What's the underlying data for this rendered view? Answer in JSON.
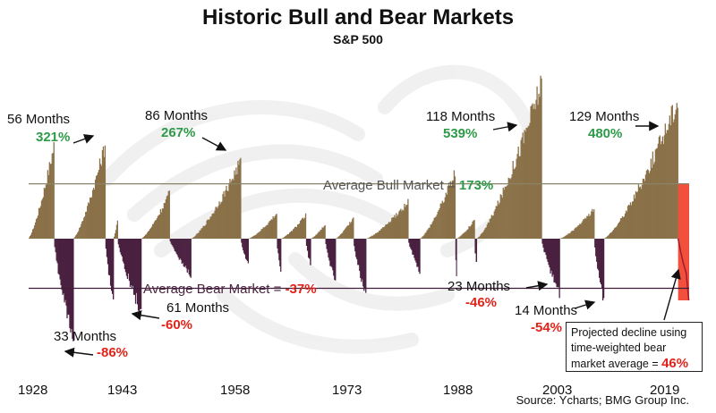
{
  "chart_data": {
    "type": "bar",
    "title": "Historic Bull and Bear Markets",
    "subtitle": "S&P 500",
    "x_tick_labels": [
      "1928",
      "1943",
      "1958",
      "1973",
      "1988",
      "2003",
      "2019"
    ],
    "average_bull": {
      "label": "Average Bull Market = ",
      "value": "173%"
    },
    "average_bear": {
      "label": "Average Bear Market = ",
      "value": "-37%"
    },
    "bull_markets": [
      {
        "start": 1926.0,
        "end": 1929.7,
        "peak": 321,
        "months": "56 Months",
        "pct": "321%"
      },
      {
        "start": 1932.5,
        "end": 1937.1,
        "peak": 325
      },
      {
        "start": 1938.3,
        "end": 1938.9,
        "peak": 62
      },
      {
        "start": 1942.3,
        "end": 1946.4,
        "peak": 158
      },
      {
        "start": 1949.5,
        "end": 1956.7,
        "peak": 267,
        "months": "86 Months",
        "pct": "267%"
      },
      {
        "start": 1957.8,
        "end": 1961.9,
        "peak": 86
      },
      {
        "start": 1962.5,
        "end": 1966.1,
        "peak": 80
      },
      {
        "start": 1966.8,
        "end": 1968.9,
        "peak": 48
      },
      {
        "start": 1970.4,
        "end": 1973.0,
        "peak": 74
      },
      {
        "start": 1974.8,
        "end": 1980.9,
        "peak": 126
      },
      {
        "start": 1982.6,
        "end": 1987.7,
        "peak": 229
      },
      {
        "start": 1987.9,
        "end": 1990.5,
        "peak": 65
      },
      {
        "start": 1990.8,
        "end": 2000.2,
        "peak": 539,
        "months": "118 Months",
        "pct": "539%"
      },
      {
        "start": 2002.8,
        "end": 2007.8,
        "peak": 102
      },
      {
        "start": 2009.2,
        "end": 2019.9,
        "peak": 480,
        "months": "129 Months",
        "pct": "480%"
      }
    ],
    "bear_markets": [
      {
        "start": 1929.7,
        "end": 1932.5,
        "trough": -86,
        "months": "33 Months",
        "pct": "-86%"
      },
      {
        "start": 1937.1,
        "end": 1938.3,
        "trough": -54
      },
      {
        "start": 1938.9,
        "end": 1942.3,
        "trough": -60,
        "months": "61 Months",
        "pct": "-60%"
      },
      {
        "start": 1946.4,
        "end": 1949.5,
        "trough": -30
      },
      {
        "start": 1956.7,
        "end": 1957.8,
        "trough": -22
      },
      {
        "start": 1961.9,
        "end": 1962.5,
        "trough": -28
      },
      {
        "start": 1966.1,
        "end": 1966.8,
        "trough": -22
      },
      {
        "start": 1968.9,
        "end": 1970.4,
        "trough": -36
      },
      {
        "start": 1973.0,
        "end": 1974.8,
        "trough": -48
      },
      {
        "start": 1980.9,
        "end": 1982.6,
        "trough": -27
      },
      {
        "start": 1987.7,
        "end": 1987.9,
        "trough": -34
      },
      {
        "start": 1990.5,
        "end": 1990.8,
        "trough": -20
      },
      {
        "start": 2000.2,
        "end": 2002.8,
        "trough": -46,
        "months": "23 Months",
        "pct": "-46%"
      },
      {
        "start": 2007.8,
        "end": 2009.2,
        "trough": -54,
        "months": "14 Months",
        "pct": "-54%"
      }
    ],
    "projection": {
      "start": 2019.9,
      "end": 2021.5,
      "bull_level": 173,
      "decline": -46,
      "text1": "Projected decline using",
      "text2": "time-weighted bear",
      "text3": "market average = ",
      "pct": "46%"
    },
    "source": "Source: Ycharts; BMG Group Inc.",
    "colors": {
      "bull": "#8a7148",
      "bear": "#4a2140",
      "projection": "#f0503c",
      "bull_line": "#8a8466",
      "bear_line": "#3f1c38",
      "green": "#2e9a48",
      "red": "#e2231a"
    }
  }
}
